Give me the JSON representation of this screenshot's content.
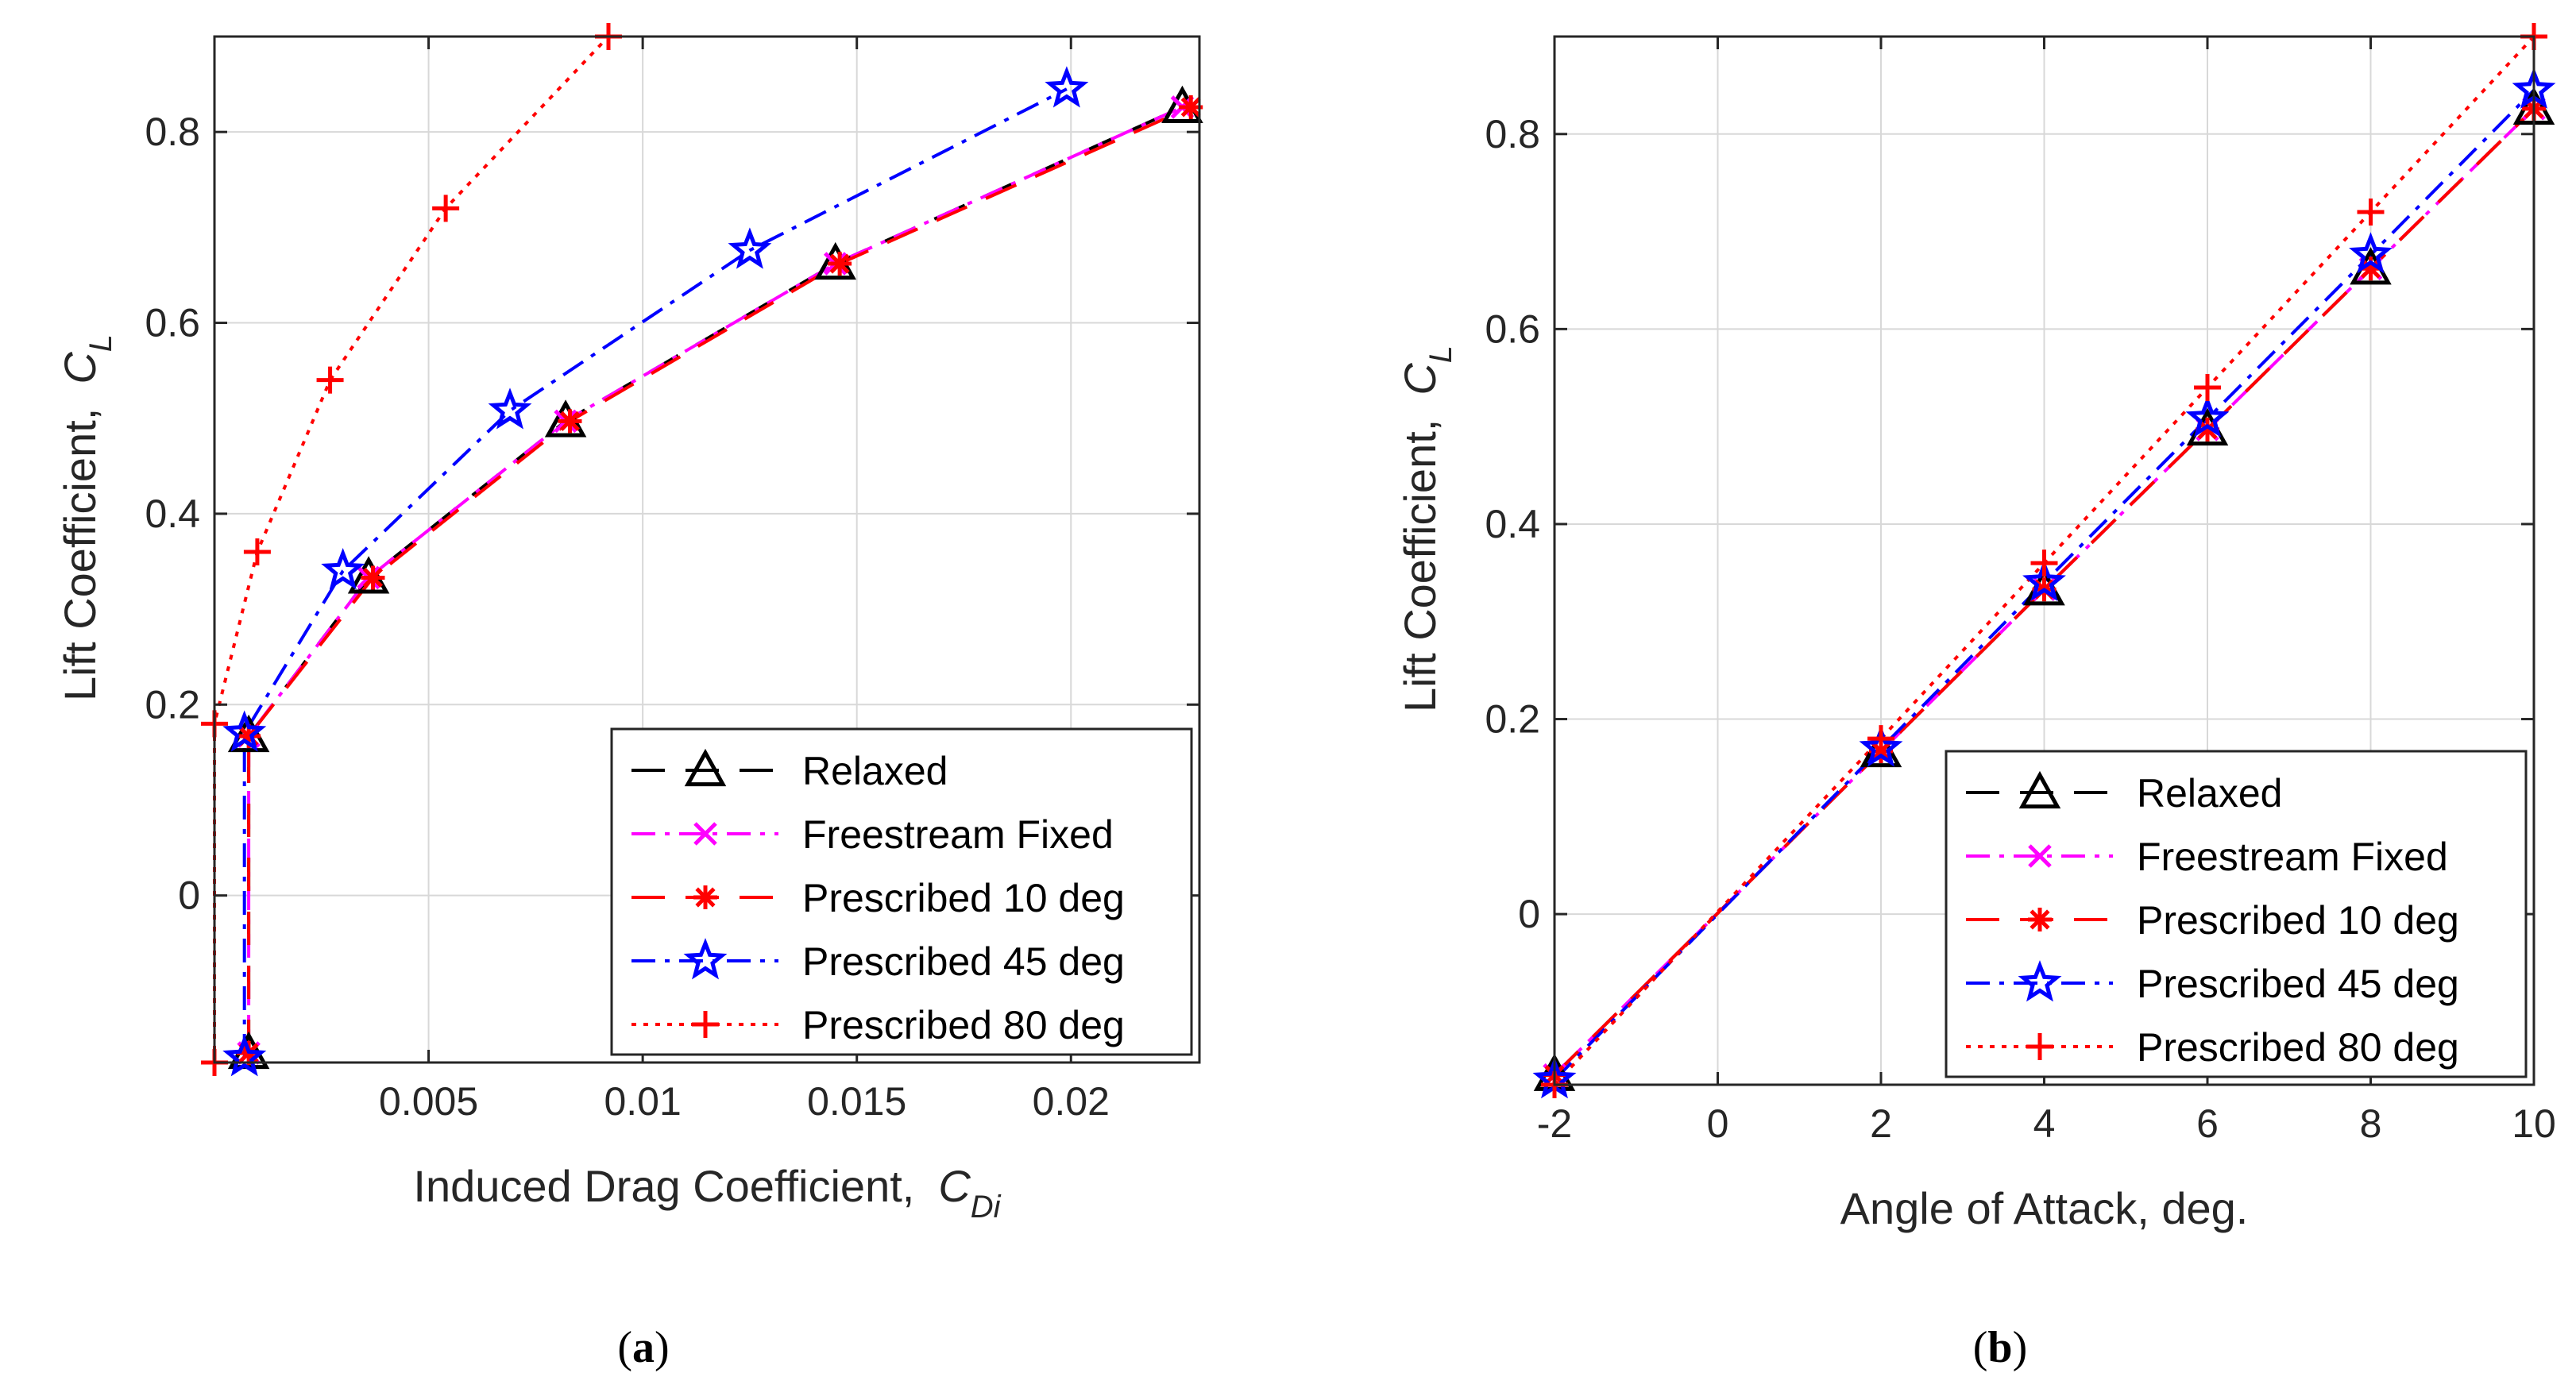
{
  "figure": {
    "captions": {
      "a_open": "(",
      "a_letter": "a",
      "a_close": ")",
      "b_open": "(",
      "b_letter": "b",
      "b_close": ")"
    }
  },
  "chart_data": [
    {
      "type": "line",
      "panel": "a",
      "title": "",
      "xlabel": "Induced Drag Coefficient,",
      "xlabel_symbol": "C",
      "xlabel_subscript": "Di",
      "ylabel": "Lift Coefficient,",
      "ylabel_symbol": "C",
      "ylabel_subscript": "L",
      "xlim": [
        0,
        0.023
      ],
      "ylim": [
        -0.175,
        0.9
      ],
      "xticks": [
        0.005,
        0.01,
        0.015,
        0.02
      ],
      "xtick_labels": [
        "0.005",
        "0.01",
        "0.015",
        "0.02"
      ],
      "yticks": [
        0,
        0.2,
        0.4,
        0.6,
        0.8
      ],
      "ytick_labels": [
        "0",
        "0.2",
        "0.4",
        "0.6",
        "0.8"
      ],
      "grid": true,
      "legend_position": "bottom-right",
      "series": [
        {
          "name": "Relaxed",
          "color": "#000000",
          "dash": "long-dash",
          "marker": "triangle",
          "x": [
            0.0008,
            0.0008,
            0.0036,
            0.0082,
            0.0145,
            0.0226
          ],
          "y": [
            -0.165,
            0.167,
            0.333,
            0.497,
            0.662,
            0.826
          ]
        },
        {
          "name": "Freestream Fixed",
          "color": "#ff00ff",
          "dash": "dash-dot",
          "marker": "x",
          "x": [
            0.0008,
            0.0008,
            0.0036,
            0.0082,
            0.0145,
            0.0226
          ],
          "y": [
            -0.165,
            0.167,
            0.333,
            0.497,
            0.662,
            0.826
          ]
        },
        {
          "name": "Prescribed 10 deg",
          "color": "#ff0000",
          "dash": "long-dash",
          "marker": "asterisk",
          "x": [
            0.0008,
            0.0008,
            0.0037,
            0.0083,
            0.0146,
            0.0228
          ],
          "y": [
            -0.165,
            0.167,
            0.333,
            0.497,
            0.662,
            0.826
          ]
        },
        {
          "name": "Prescribed 45 deg",
          "color": "#0000ff",
          "dash": "dash-dot",
          "marker": "star",
          "x": [
            0.0007,
            0.0007,
            0.003,
            0.0069,
            0.0125,
            0.0199
          ],
          "y": [
            -0.17,
            0.17,
            0.34,
            0.508,
            0.676,
            0.845
          ]
        },
        {
          "name": "Prescribed 80 deg",
          "color": "#ff0000",
          "dash": "dotted",
          "marker": "plus",
          "x": [
            0.0,
            0.0,
            0.001,
            0.0027,
            0.0054,
            0.0092
          ],
          "y": [
            -0.175,
            0.18,
            0.36,
            0.54,
            0.72,
            0.9
          ]
        }
      ]
    },
    {
      "type": "line",
      "panel": "b",
      "title": "",
      "xlabel": "Angle of Attack, deg.",
      "ylabel": "Lift Coefficient,",
      "ylabel_symbol": "C",
      "ylabel_subscript": "L",
      "xlim": [
        -2,
        10
      ],
      "ylim": [
        -0.175,
        0.9
      ],
      "xticks": [
        -2,
        0,
        2,
        4,
        6,
        8,
        10
      ],
      "xtick_labels": [
        "-2",
        "0",
        "2",
        "4",
        "6",
        "8",
        "10"
      ],
      "yticks": [
        0,
        0.2,
        0.4,
        0.6,
        0.8
      ],
      "ytick_labels": [
        "0",
        "0.2",
        "0.4",
        "0.6",
        "0.8"
      ],
      "grid": true,
      "legend_position": "bottom-right",
      "series": [
        {
          "name": "Relaxed",
          "color": "#000000",
          "dash": "long-dash",
          "marker": "triangle",
          "x": [
            -2,
            2,
            4,
            6,
            8,
            10
          ],
          "y": [
            -0.165,
            0.167,
            0.333,
            0.497,
            0.662,
            0.826
          ]
        },
        {
          "name": "Freestream Fixed",
          "color": "#ff00ff",
          "dash": "dash-dot",
          "marker": "x",
          "x": [
            -2,
            2,
            4,
            6,
            8,
            10
          ],
          "y": [
            -0.165,
            0.167,
            0.333,
            0.497,
            0.662,
            0.826
          ]
        },
        {
          "name": "Prescribed 10 deg",
          "color": "#ff0000",
          "dash": "long-dash",
          "marker": "asterisk",
          "x": [
            -2,
            2,
            4,
            6,
            8,
            10
          ],
          "y": [
            -0.165,
            0.167,
            0.333,
            0.497,
            0.662,
            0.826
          ]
        },
        {
          "name": "Prescribed 45 deg",
          "color": "#0000ff",
          "dash": "dash-dot",
          "marker": "star",
          "x": [
            -2,
            2,
            4,
            6,
            8,
            10
          ],
          "y": [
            -0.17,
            0.17,
            0.34,
            0.508,
            0.676,
            0.845
          ]
        },
        {
          "name": "Prescribed 80 deg",
          "color": "#ff0000",
          "dash": "dotted",
          "marker": "plus",
          "x": [
            -2,
            2,
            4,
            6,
            8,
            10
          ],
          "y": [
            -0.175,
            0.18,
            0.36,
            0.54,
            0.72,
            0.9
          ]
        }
      ]
    }
  ]
}
